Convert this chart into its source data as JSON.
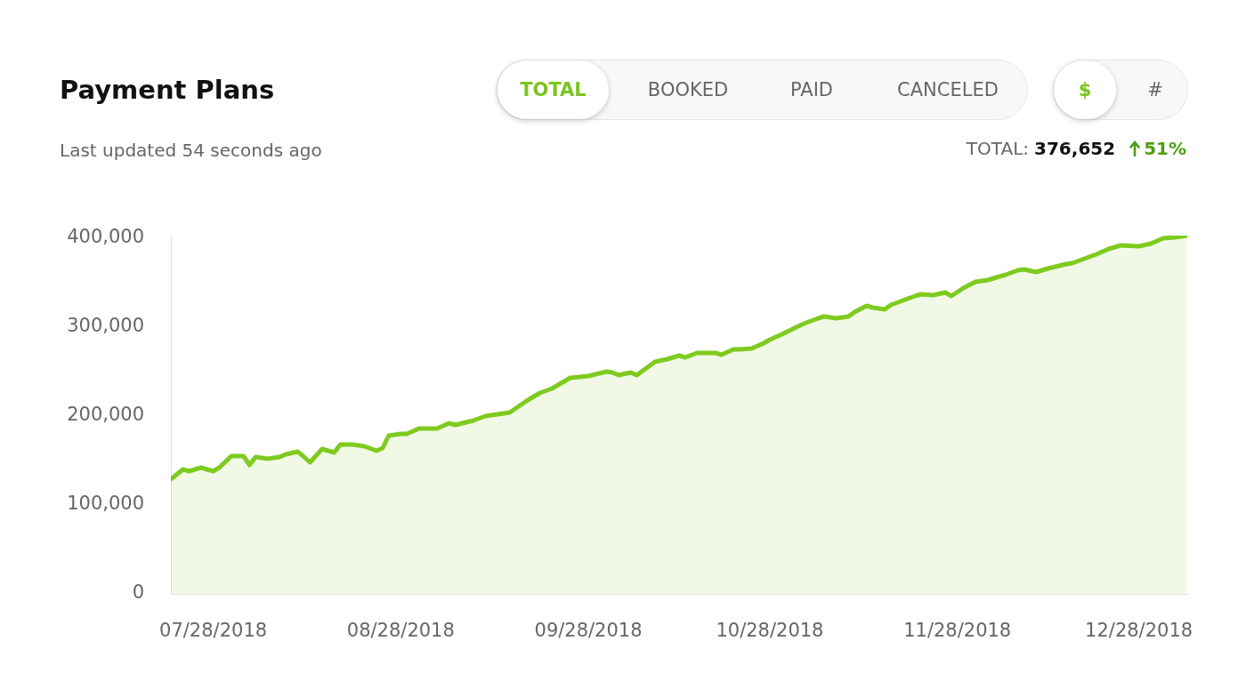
{
  "chart_data": {
    "type": "area",
    "title": "Payment Plans",
    "subtitle": "Last updated 54 seconds ago",
    "annotations": [
      "TOTAL",
      "BOOKED",
      "PAID",
      "CANCELED",
      "$",
      "#",
      "TOTAL:",
      "376,652",
      "51%"
    ],
    "x": [
      "2018-07-21",
      "2018-07-23",
      "2018-07-24",
      "2018-07-26",
      "2018-07-28",
      "2018-07-29",
      "2018-07-31",
      "2018-08-02",
      "2018-08-03",
      "2018-08-04",
      "2018-08-06",
      "2018-08-08",
      "2018-08-09",
      "2018-08-11",
      "2018-08-13",
      "2018-08-15",
      "2018-08-17",
      "2018-08-18",
      "2018-08-20",
      "2018-08-22",
      "2018-08-24",
      "2018-08-25",
      "2018-08-26",
      "2018-08-28",
      "2018-08-29",
      "2018-08-31",
      "2018-09-03",
      "2018-09-05",
      "2018-09-06",
      "2018-09-09",
      "2018-09-11",
      "2018-09-13",
      "2018-09-15",
      "2018-09-18",
      "2018-09-20",
      "2018-09-22",
      "2018-09-24",
      "2018-09-25",
      "2018-09-28",
      "2018-10-01",
      "2018-10-02",
      "2018-10-03",
      "2018-10-05",
      "2018-10-06",
      "2018-10-09",
      "2018-10-11",
      "2018-10-13",
      "2018-10-14",
      "2018-10-16",
      "2018-10-19",
      "2018-10-20",
      "2018-10-22",
      "2018-10-23",
      "2018-10-25",
      "2018-10-27",
      "2018-10-28",
      "2018-10-30",
      "2018-11-02",
      "2018-11-03",
      "2018-11-05",
      "2018-11-06",
      "2018-11-08",
      "2018-11-10",
      "2018-11-11",
      "2018-11-13",
      "2018-11-14",
      "2018-11-16",
      "2018-11-17",
      "2018-11-19",
      "2018-11-21",
      "2018-11-22",
      "2018-11-24",
      "2018-11-26",
      "2018-11-27",
      "2018-11-29",
      "2018-12-01",
      "2018-12-03",
      "2018-12-06",
      "2018-12-08",
      "2018-12-09",
      "2018-12-11",
      "2018-12-13",
      "2018-12-16",
      "2018-12-17",
      "2018-12-19",
      "2018-12-21",
      "2018-12-23",
      "2018-12-25",
      "2018-12-28",
      "2018-12-30",
      "2019-01-01",
      "2019-01-03",
      "2019-01-05"
    ],
    "values": [
      129000,
      140000,
      138000,
      142000,
      138000,
      142000,
      155000,
      155000,
      145000,
      154000,
      152000,
      154000,
      157000,
      160000,
      148000,
      163000,
      159000,
      168000,
      168000,
      166000,
      161000,
      164000,
      178000,
      180000,
      180000,
      186000,
      186000,
      192000,
      190000,
      195000,
      200000,
      202000,
      204000,
      218000,
      226000,
      231000,
      239000,
      243000,
      245000,
      250000,
      249000,
      246000,
      249000,
      246000,
      261000,
      264000,
      268000,
      266000,
      271000,
      271000,
      269000,
      275000,
      275000,
      276000,
      282000,
      286000,
      292000,
      302000,
      305000,
      310000,
      312000,
      310000,
      312000,
      317000,
      324000,
      322000,
      320000,
      325000,
      330000,
      335000,
      337000,
      336000,
      339000,
      335000,
      344000,
      351000,
      353000,
      359000,
      364000,
      365000,
      362000,
      366000,
      371000,
      372000,
      377000,
      382000,
      388000,
      392000,
      391000,
      394000,
      400000,
      401000,
      403000
    ],
    "color": "#7ecb1f",
    "xlim": [
      "2018-07-21",
      "2019-01-05"
    ],
    "xticks": [
      {
        "value": "2018-07-28",
        "label": "07/28/2018"
      },
      {
        "value": "2018-08-28",
        "label": "08/28/2018"
      },
      {
        "value": "2018-09-28",
        "label": "09/28/2018"
      },
      {
        "value": "2018-10-28",
        "label": "10/28/2018"
      },
      {
        "value": "2018-11-28",
        "label": "11/28/2018"
      },
      {
        "value": "2018-12-28",
        "label": "12/28/2018"
      }
    ],
    "ylim": [
      0,
      403000
    ],
    "yticks": [
      0,
      {
        "value": 100000,
        "label": "100,000"
      },
      {
        "value": 200000,
        "label": "200,000"
      },
      {
        "value": 300000,
        "label": "300,000"
      },
      {
        "value": 400000,
        "label": "400,000"
      }
    ],
    "grid": false,
    "legend": false
  }
}
